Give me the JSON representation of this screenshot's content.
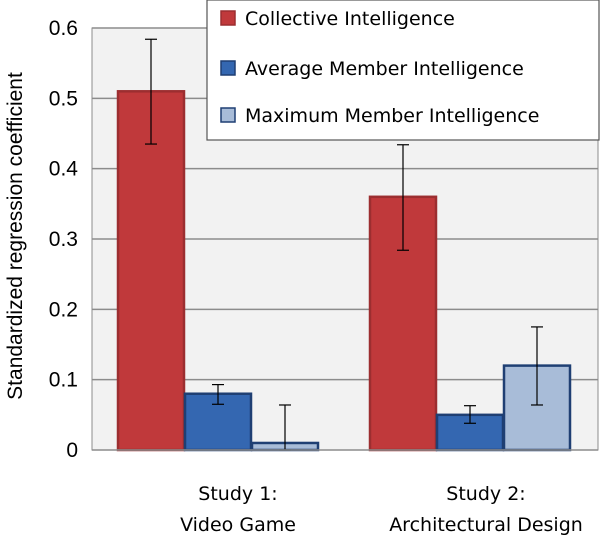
{
  "chart_data": {
    "type": "bar",
    "title": "",
    "xlabel": "",
    "ylabel": "Standardized regression coefficient",
    "ylim": [
      0,
      0.6
    ],
    "yticks": [
      "0",
      "0.1",
      "0.2",
      "0.3",
      "0.4",
      "0.5",
      "0.6"
    ],
    "grid": true,
    "legend_position": "top-right",
    "categories": [
      [
        "Study 1:",
        "Video Game"
      ],
      [
        "Study 2:",
        "Architectural Design"
      ]
    ],
    "series": [
      {
        "name": "Collective Intelligence",
        "color": "#c0393b",
        "stroke": "#9c2e30",
        "values": [
          0.51,
          0.36
        ],
        "err_low": [
          0.435,
          0.284
        ],
        "err_high": [
          0.584,
          0.434
        ]
      },
      {
        "name": "Average Member Intelligence",
        "color": "#3467b1",
        "stroke": "#1f3f73",
        "values": [
          0.08,
          0.05
        ],
        "err_low": [
          0.065,
          0.038
        ],
        "err_high": [
          0.093,
          0.063
        ]
      },
      {
        "name": "Maximum Member Intelligence",
        "color": "#a8bcd8",
        "stroke": "#1f3f73",
        "values": [
          0.01,
          0.12
        ],
        "err_low": [
          0.0,
          0.064
        ],
        "err_high": [
          0.064,
          0.175
        ]
      }
    ]
  }
}
